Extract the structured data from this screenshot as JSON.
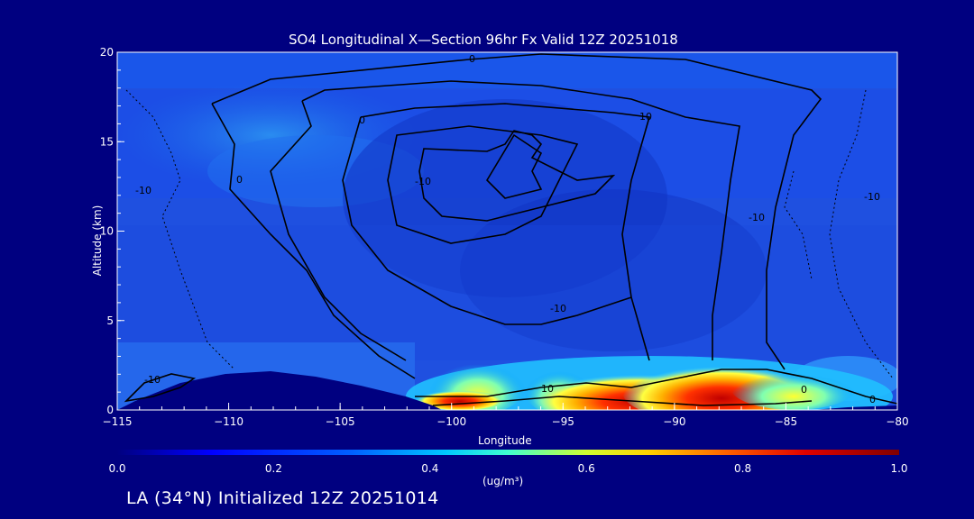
{
  "chart_data": {
    "type": "heatmap",
    "title": "SO4 Longitudinal X—Section 96hr  Fx Valid 12Z 20251018",
    "xlabel": "Longitude",
    "ylabel": "Altitude (km)",
    "xlim": [
      -115,
      -80
    ],
    "ylim": [
      0,
      20
    ],
    "xticks": [
      -115,
      -110,
      -105,
      -100,
      -95,
      -90,
      -85,
      -80
    ],
    "yticks": [
      0,
      5,
      10,
      15,
      20
    ],
    "colorbar": {
      "label": "(ug/m³)",
      "range": [
        0.0,
        1.0
      ],
      "ticks": [
        "0.0",
        "0.2",
        "0.4",
        "0.6",
        "0.8",
        "1.0"
      ]
    },
    "contour_labels": [
      "0",
      "0",
      "0",
      "-10",
      "10",
      "-10",
      "-10",
      "-10",
      "-10",
      "10",
      "-10",
      "0",
      "0"
    ],
    "high_concentration_region": {
      "lon_range": [
        -101,
        -81
      ],
      "alt_range": [
        0,
        2.5
      ],
      "peak_value": 1.0,
      "peak_lon": -89,
      "peak_alt": 0.5
    },
    "terrain": {
      "lon": [
        -115,
        -113,
        -111,
        -109,
        -107,
        -105,
        -103,
        -101,
        -100
      ],
      "alt": [
        0.2,
        1.2,
        1.8,
        2.1,
        2.0,
        1.6,
        1.1,
        0.6,
        0.3
      ]
    },
    "colorscale": [
      "#000080",
      "#0000ff",
      "#00a0ff",
      "#00ffff",
      "#ffff00",
      "#ff8000",
      "#ff0000",
      "#800000"
    ]
  },
  "footer": {
    "text": "LA (34°N) Initialized 12Z 20251014"
  }
}
